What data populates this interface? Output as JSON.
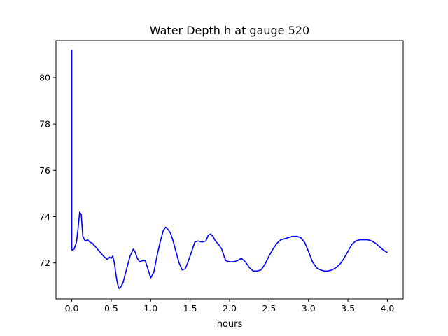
{
  "chart_data": {
    "type": "line",
    "title": "Water Depth h at gauge 520",
    "xlabel": "hours",
    "ylabel": "",
    "xlim": [
      -0.2,
      4.2
    ],
    "ylim": [
      70.45,
      81.6
    ],
    "xticks": [
      0.0,
      0.5,
      1.0,
      1.5,
      2.0,
      2.5,
      3.0,
      3.5,
      4.0
    ],
    "xtick_labels": [
      "0.0",
      "0.5",
      "1.0",
      "1.5",
      "2.0",
      "2.5",
      "3.0",
      "3.5",
      "4.0"
    ],
    "yticks": [
      72,
      74,
      76,
      78,
      80
    ],
    "ytick_labels": [
      "72",
      "74",
      "76",
      "78",
      "80"
    ],
    "grid": false,
    "legend": "none",
    "series": [
      {
        "color": "#0000ff",
        "x": [
          0.0,
          0.0,
          0.005,
          0.03,
          0.06,
          0.08,
          0.1,
          0.12,
          0.14,
          0.17,
          0.2,
          0.23,
          0.26,
          0.3,
          0.35,
          0.4,
          0.45,
          0.48,
          0.5,
          0.52,
          0.54,
          0.56,
          0.58,
          0.6,
          0.62,
          0.65,
          0.7,
          0.74,
          0.78,
          0.8,
          0.83,
          0.86,
          0.9,
          0.93,
          0.96,
          1.0,
          1.04,
          1.08,
          1.12,
          1.16,
          1.19,
          1.22,
          1.25,
          1.28,
          1.32,
          1.36,
          1.4,
          1.44,
          1.48,
          1.52,
          1.56,
          1.6,
          1.65,
          1.7,
          1.73,
          1.76,
          1.79,
          1.82,
          1.86,
          1.9,
          1.95,
          2.0,
          2.05,
          2.1,
          2.15,
          2.2,
          2.25,
          2.3,
          2.35,
          2.4,
          2.45,
          2.5,
          2.55,
          2.6,
          2.65,
          2.7,
          2.75,
          2.8,
          2.85,
          2.9,
          2.95,
          3.0,
          3.05,
          3.1,
          3.15,
          3.2,
          3.25,
          3.3,
          3.35,
          3.4,
          3.45,
          3.5,
          3.55,
          3.6,
          3.65,
          3.7,
          3.75,
          3.8,
          3.85,
          3.9,
          3.95,
          4.0
        ],
        "y": [
          81.2,
          72.6,
          72.55,
          72.6,
          72.9,
          73.5,
          74.2,
          74.1,
          73.15,
          72.95,
          73.0,
          72.9,
          72.85,
          72.7,
          72.5,
          72.3,
          72.15,
          72.25,
          72.2,
          72.3,
          72.0,
          71.5,
          71.1,
          70.9,
          70.95,
          71.15,
          71.8,
          72.3,
          72.6,
          72.5,
          72.2,
          72.05,
          72.1,
          72.1,
          71.8,
          71.35,
          71.6,
          72.3,
          72.9,
          73.4,
          73.55,
          73.45,
          73.3,
          73.0,
          72.5,
          72.0,
          71.7,
          71.75,
          72.1,
          72.5,
          72.9,
          72.95,
          72.9,
          72.95,
          73.2,
          73.25,
          73.15,
          72.95,
          72.8,
          72.6,
          72.1,
          72.05,
          72.05,
          72.1,
          72.2,
          72.05,
          71.8,
          71.65,
          71.65,
          71.7,
          71.95,
          72.3,
          72.6,
          72.85,
          73.0,
          73.05,
          73.1,
          73.15,
          73.15,
          73.1,
          72.9,
          72.5,
          72.05,
          71.8,
          71.7,
          71.65,
          71.65,
          71.7,
          71.8,
          71.95,
          72.2,
          72.5,
          72.8,
          72.95,
          73.0,
          73.0,
          73.0,
          72.95,
          72.85,
          72.7,
          72.55,
          72.45
        ]
      }
    ]
  }
}
